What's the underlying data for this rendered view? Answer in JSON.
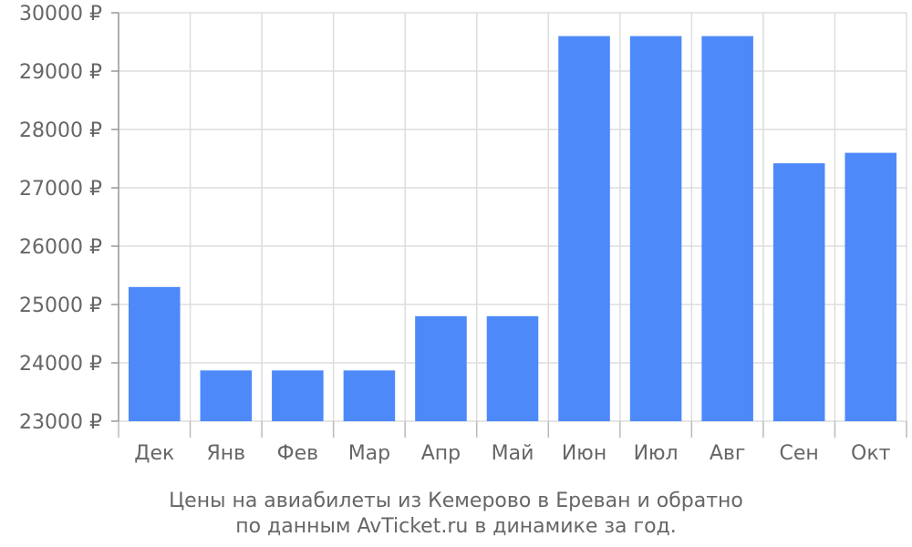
{
  "chart_data": {
    "type": "bar",
    "title_lines": [
      "Цены на авиабилеты из Кемерово в Ереван и обратно",
      "по данным AvTicket.ru в динамике за год."
    ],
    "categories": [
      "Дек",
      "Янв",
      "Фев",
      "Мар",
      "Апр",
      "Май",
      "Июн",
      "Июл",
      "Авг",
      "Сен",
      "Окт"
    ],
    "values": [
      25300,
      23870,
      23870,
      23870,
      24800,
      24800,
      29600,
      29600,
      29600,
      27420,
      27600
    ],
    "y_ticks": [
      23000,
      24000,
      25000,
      26000,
      27000,
      28000,
      29000,
      30000
    ],
    "y_tick_suffix": " ₽",
    "ylim": [
      23000,
      30000
    ],
    "grid": true,
    "bar_color": "#4d89f9",
    "grid_color": "#dddddd",
    "text_color": "#666666"
  }
}
